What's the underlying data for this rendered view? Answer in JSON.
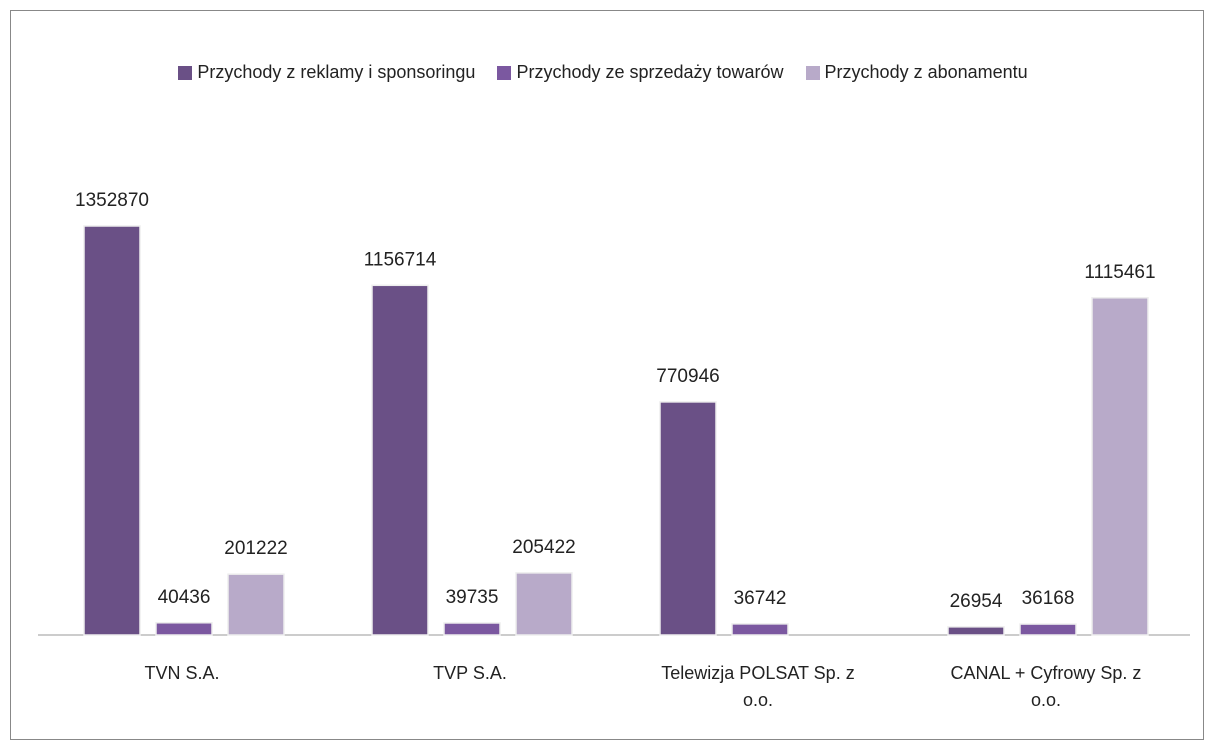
{
  "chart_data": {
    "type": "bar",
    "categories": [
      "TVN S.A.",
      "TVP S.A.",
      "Telewizja POLSAT Sp. z o.o.",
      "CANAL + Cyfrowy Sp. z o.o."
    ],
    "series": [
      {
        "name": "Przychody z reklamy i sponsoringu",
        "color": "#6a5086",
        "values": [
          1352870,
          1156714,
          770946,
          26954
        ]
      },
      {
        "name": "Przychody ze sprzedaży towarów",
        "color": "#7b58a0",
        "values": [
          40436,
          39735,
          36742,
          36168
        ]
      },
      {
        "name": "Przychody z abonamentu",
        "color": "#b8aac9",
        "values": [
          201222,
          205422,
          null,
          1115461
        ]
      }
    ],
    "legend": "top"
  }
}
